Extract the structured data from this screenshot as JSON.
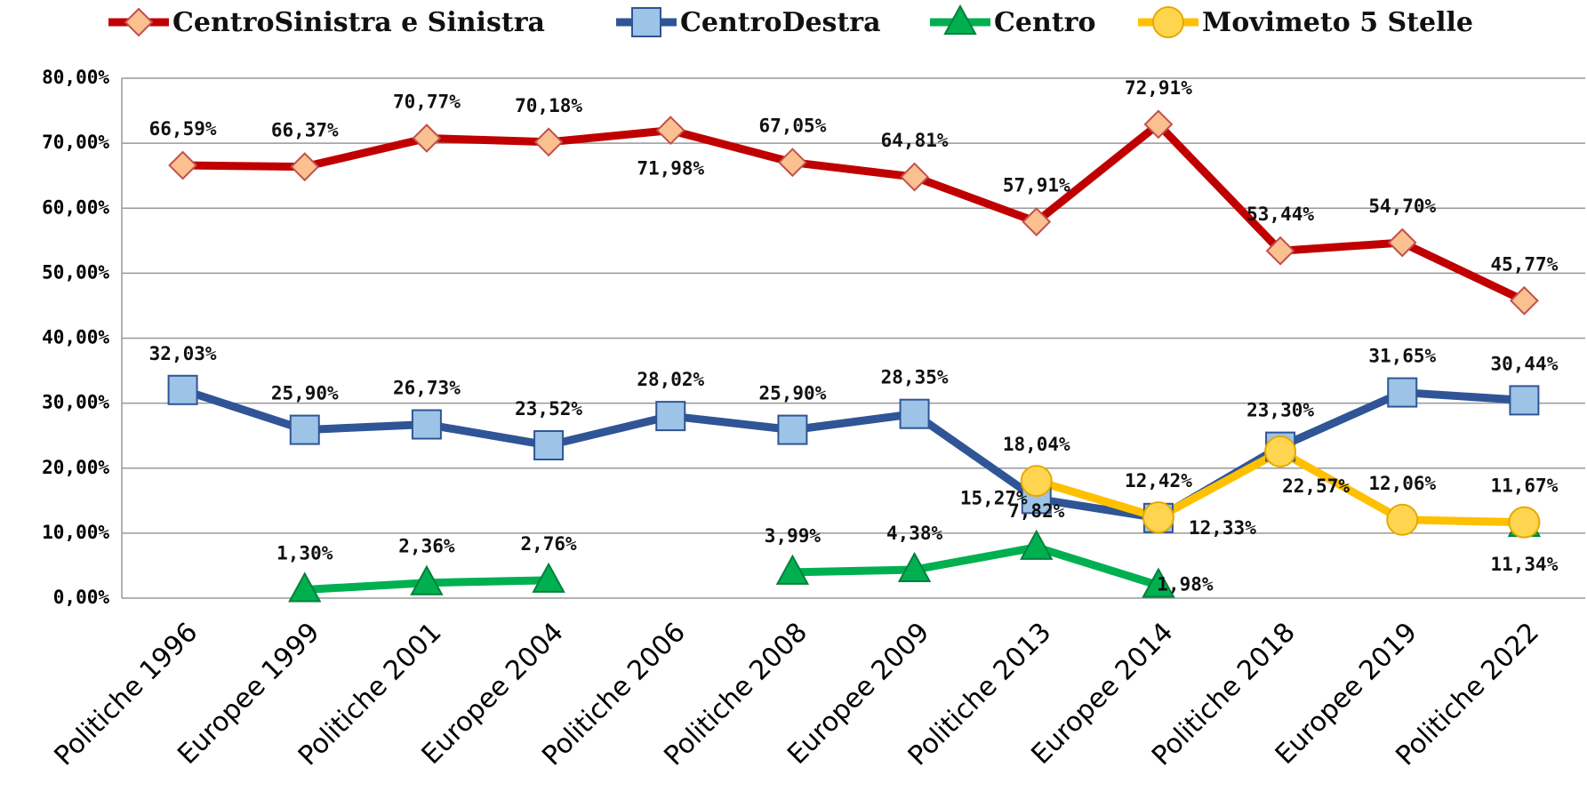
{
  "chart_data": {
    "type": "line",
    "categories": [
      "Politiche 1996",
      "Europee 1999",
      "Politiche 2001",
      "Europee 2004",
      "Politiche 2006",
      "Politiche 2008",
      "Europee 2009",
      "Politiche 2013",
      "Europee 2014",
      "Politiche 2018",
      "Europee 2019",
      "Politiche 2022"
    ],
    "series": [
      {
        "name": "CentroSinistra e Sinistra",
        "color": "#c00000",
        "marker_color": "#fbc08f",
        "marker": "diamond",
        "values": [
          66.59,
          66.37,
          70.77,
          70.18,
          71.98,
          67.05,
          64.81,
          57.91,
          72.91,
          53.44,
          54.7,
          45.77
        ],
        "value_labels": [
          "66,59%",
          "66,37%",
          "70,77%",
          "70,18%",
          "71,98%",
          "67,05%",
          "64,81%",
          "57,91%",
          "72,91%",
          "53,44%",
          "54,70%",
          "45,77%"
        ]
      },
      {
        "name": "CentroDestra",
        "color": "#2f5597",
        "marker_color": "#9dc3e6",
        "marker": "square",
        "values": [
          32.03,
          25.9,
          26.73,
          23.52,
          28.02,
          25.9,
          28.35,
          15.27,
          12.33,
          23.3,
          31.65,
          30.44
        ],
        "value_labels": [
          "32,03%",
          "25,90%",
          "26,73%",
          "23,52%",
          "28,02%",
          "25,90%",
          "28,35%",
          "15,27%",
          "12,33%",
          "23,30%",
          "31,65%",
          "30,44%"
        ]
      },
      {
        "name": "Centro",
        "color": "#00b050",
        "marker_color": "#00b050",
        "marker": "triangle",
        "values": [
          null,
          1.3,
          2.36,
          2.76,
          null,
          3.99,
          4.38,
          7.82,
          1.98,
          null,
          null,
          11.34
        ],
        "value_labels": [
          null,
          "1,30%",
          "2,36%",
          "2,76%",
          null,
          "3,99%",
          "4,38%",
          "7,82%",
          "1,98%",
          null,
          null,
          "11,34%"
        ]
      },
      {
        "name": "Movimeto 5 Stelle",
        "color": "#ffc000",
        "marker_color": "#ffd54f",
        "marker": "circle",
        "values": [
          null,
          null,
          null,
          null,
          null,
          null,
          null,
          18.04,
          12.42,
          22.57,
          12.06,
          11.67
        ],
        "value_labels": [
          null,
          null,
          null,
          null,
          null,
          null,
          null,
          "18,04%",
          "12,42%",
          "22,57%",
          "12,06%",
          "11,67%"
        ]
      }
    ],
    "ylim": [
      0,
      80
    ],
    "yticks": [
      {
        "value": 0,
        "label": "0,00%"
      },
      {
        "value": 10,
        "label": "10,00%"
      },
      {
        "value": 20,
        "label": "20,00%"
      },
      {
        "value": 30,
        "label": "30,00%"
      },
      {
        "value": 40,
        "label": "40,00%"
      },
      {
        "value": 50,
        "label": "50,00%"
      },
      {
        "value": 60,
        "label": "60,00%"
      },
      {
        "value": 70,
        "label": "70,00%"
      },
      {
        "value": 80,
        "label": "80,00%"
      }
    ],
    "grid": true,
    "legend": "top"
  }
}
